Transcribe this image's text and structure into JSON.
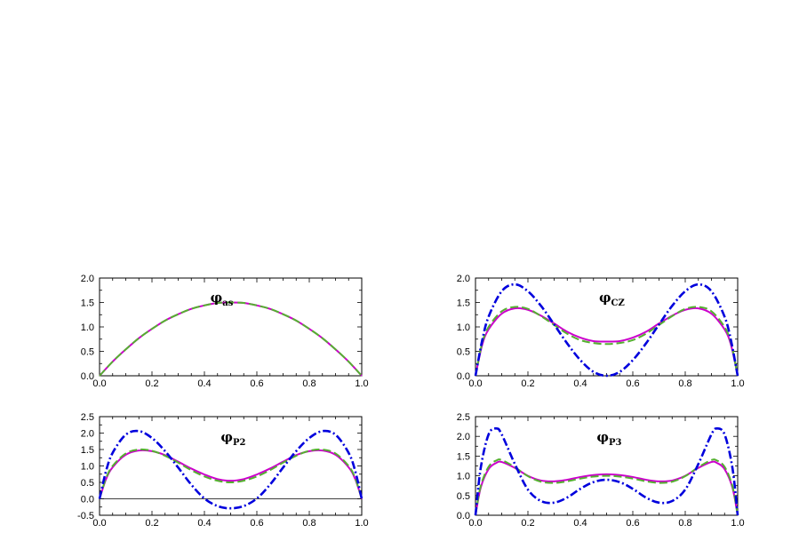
{
  "colors": {
    "magenta": "#cc00cc",
    "green": "#55b030",
    "blue": "#0000dd",
    "axis": "#000000"
  },
  "chart_data": [
    {
      "type": "line",
      "title": "φ",
      "title_sub": "as",
      "xlim": [
        0,
        1
      ],
      "ylim": [
        0,
        2
      ],
      "x_ticks": [
        "0.0",
        "0.2",
        "0.4",
        "0.6",
        "0.8",
        "1.0"
      ],
      "y_ticks": [
        "0.0",
        "0.5",
        "1.0",
        "1.5",
        "2.0"
      ],
      "x_tick_values": [
        0,
        0.2,
        0.4,
        0.6,
        0.8,
        1.0
      ],
      "y_tick_values": [
        0,
        0.5,
        1.0,
        1.5,
        2.0
      ],
      "zero_line": false,
      "series": [
        {
          "style": "solid",
          "color": "magenta",
          "x": [
            0,
            0.05,
            0.1,
            0.15,
            0.2,
            0.25,
            0.3,
            0.35,
            0.4,
            0.45,
            0.5,
            0.55,
            0.6,
            0.65,
            0.7,
            0.75,
            0.8,
            0.85,
            0.9,
            0.95,
            1.0
          ],
          "y": [
            0,
            0.29,
            0.54,
            0.77,
            0.96,
            1.13,
            1.26,
            1.37,
            1.44,
            1.49,
            1.5,
            1.49,
            1.44,
            1.37,
            1.26,
            1.13,
            0.96,
            0.77,
            0.54,
            0.29,
            0
          ]
        },
        {
          "style": "dashed",
          "color": "green",
          "x": [
            0,
            0.05,
            0.1,
            0.15,
            0.2,
            0.25,
            0.3,
            0.35,
            0.4,
            0.45,
            0.5,
            0.55,
            0.6,
            0.65,
            0.7,
            0.75,
            0.8,
            0.85,
            0.9,
            0.95,
            1.0
          ],
          "y": [
            0,
            0.29,
            0.54,
            0.77,
            0.96,
            1.13,
            1.26,
            1.37,
            1.44,
            1.49,
            1.5,
            1.49,
            1.44,
            1.37,
            1.26,
            1.13,
            0.96,
            0.77,
            0.54,
            0.29,
            0
          ]
        }
      ]
    },
    {
      "type": "line",
      "title": "φ",
      "title_sub": "CZ",
      "xlim": [
        0,
        1
      ],
      "ylim": [
        0,
        2
      ],
      "x_ticks": [
        "0.0",
        "0.2",
        "0.4",
        "0.6",
        "0.8",
        "1.0"
      ],
      "y_ticks": [
        "0.0",
        "0.5",
        "1.0",
        "1.5",
        "2.0"
      ],
      "x_tick_values": [
        0,
        0.2,
        0.4,
        0.6,
        0.8,
        1.0
      ],
      "y_tick_values": [
        0,
        0.5,
        1.0,
        1.5,
        2.0
      ],
      "zero_line": false,
      "series": [
        {
          "style": "solid",
          "color": "magenta",
          "x": [
            0,
            0.025,
            0.05,
            0.1,
            0.15,
            0.2,
            0.25,
            0.3,
            0.35,
            0.4,
            0.45,
            0.5,
            0.55,
            0.6,
            0.65,
            0.7,
            0.75,
            0.8,
            0.85,
            0.9,
            0.95,
            0.975,
            1.0
          ],
          "y": [
            0,
            0.62,
            0.95,
            1.27,
            1.38,
            1.35,
            1.23,
            1.07,
            0.9,
            0.78,
            0.71,
            0.7,
            0.71,
            0.78,
            0.9,
            1.07,
            1.23,
            1.35,
            1.38,
            1.27,
            0.95,
            0.62,
            0
          ]
        },
        {
          "style": "dashed",
          "color": "green",
          "x": [
            0,
            0.025,
            0.05,
            0.1,
            0.15,
            0.2,
            0.25,
            0.3,
            0.35,
            0.4,
            0.45,
            0.5,
            0.55,
            0.6,
            0.65,
            0.7,
            0.75,
            0.8,
            0.85,
            0.9,
            0.95,
            0.975,
            1.0
          ],
          "y": [
            0,
            0.66,
            1.0,
            1.32,
            1.41,
            1.37,
            1.22,
            1.04,
            0.86,
            0.73,
            0.67,
            0.65,
            0.67,
            0.73,
            0.86,
            1.04,
            1.22,
            1.37,
            1.41,
            1.32,
            1.0,
            0.66,
            0
          ]
        },
        {
          "style": "dashdot",
          "color": "blue",
          "x": [
            0,
            0.025,
            0.05,
            0.1,
            0.15,
            0.2,
            0.25,
            0.3,
            0.35,
            0.4,
            0.45,
            0.5,
            0.55,
            0.6,
            0.65,
            0.7,
            0.75,
            0.8,
            0.85,
            0.9,
            0.95,
            0.975,
            1.0
          ],
          "y": [
            0,
            0.71,
            1.21,
            1.73,
            1.87,
            1.73,
            1.43,
            1.05,
            0.66,
            0.32,
            0.08,
            0,
            0.08,
            0.32,
            0.66,
            1.05,
            1.43,
            1.73,
            1.87,
            1.73,
            1.21,
            0.71,
            0
          ]
        }
      ]
    },
    {
      "type": "line",
      "title": "φ",
      "title_sub": "P2",
      "xlim": [
        0,
        1
      ],
      "ylim": [
        -0.5,
        2.5
      ],
      "x_ticks": [
        "0.0",
        "0.2",
        "0.4",
        "0.6",
        "0.8",
        "1.0"
      ],
      "y_ticks": [
        "-0.5",
        "0.0",
        "0.5",
        "1.0",
        "1.5",
        "2.0",
        "2.5"
      ],
      "x_tick_values": [
        0,
        0.2,
        0.4,
        0.6,
        0.8,
        1.0
      ],
      "y_tick_values": [
        -0.5,
        0,
        0.5,
        1.0,
        1.5,
        2.0,
        2.5
      ],
      "zero_line": true,
      "series": [
        {
          "style": "solid",
          "color": "magenta",
          "x": [
            0,
            0.025,
            0.05,
            0.1,
            0.15,
            0.2,
            0.25,
            0.3,
            0.35,
            0.4,
            0.45,
            0.5,
            0.55,
            0.6,
            0.65,
            0.7,
            0.75,
            0.8,
            0.85,
            0.9,
            0.95,
            0.975,
            1.0
          ],
          "y": [
            0,
            0.6,
            0.96,
            1.34,
            1.47,
            1.45,
            1.33,
            1.13,
            0.92,
            0.74,
            0.6,
            0.55,
            0.6,
            0.74,
            0.92,
            1.13,
            1.33,
            1.45,
            1.47,
            1.34,
            0.96,
            0.6,
            0
          ]
        },
        {
          "style": "dashed",
          "color": "green",
          "x": [
            0,
            0.025,
            0.05,
            0.1,
            0.15,
            0.2,
            0.25,
            0.3,
            0.35,
            0.4,
            0.45,
            0.5,
            0.55,
            0.6,
            0.65,
            0.7,
            0.75,
            0.8,
            0.85,
            0.9,
            0.95,
            0.975,
            1.0
          ],
          "y": [
            0,
            0.63,
            1.0,
            1.38,
            1.5,
            1.46,
            1.31,
            1.1,
            0.87,
            0.68,
            0.55,
            0.5,
            0.55,
            0.68,
            0.87,
            1.1,
            1.31,
            1.46,
            1.5,
            1.38,
            1.0,
            0.63,
            0
          ]
        },
        {
          "style": "dashdot",
          "color": "blue",
          "x": [
            0,
            0.025,
            0.05,
            0.1,
            0.15,
            0.2,
            0.25,
            0.3,
            0.35,
            0.4,
            0.45,
            0.5,
            0.55,
            0.6,
            0.65,
            0.7,
            0.75,
            0.8,
            0.85,
            0.9,
            0.95,
            0.975,
            1.0
          ],
          "y": [
            0,
            0.85,
            1.4,
            1.95,
            2.06,
            1.85,
            1.45,
            0.95,
            0.43,
            0.01,
            -0.22,
            -0.29,
            -0.22,
            0.01,
            0.43,
            0.95,
            1.45,
            1.85,
            2.06,
            1.95,
            1.4,
            0.85,
            0
          ]
        }
      ]
    },
    {
      "type": "line",
      "title": "φ",
      "title_sub": "P3",
      "xlim": [
        0,
        1
      ],
      "ylim": [
        0,
        2.5
      ],
      "x_ticks": [
        "0.0",
        "0.2",
        "0.4",
        "0.6",
        "0.8",
        "1.0"
      ],
      "y_ticks": [
        "0.0",
        "0.5",
        "1.0",
        "1.5",
        "2.0",
        "2.5"
      ],
      "x_tick_values": [
        0,
        0.2,
        0.4,
        0.6,
        0.8,
        1.0
      ],
      "y_tick_values": [
        0,
        0.5,
        1.0,
        1.5,
        2.0,
        2.5
      ],
      "zero_line": false,
      "series": [
        {
          "style": "solid",
          "color": "magenta",
          "x": [
            0,
            0.02,
            0.05,
            0.08,
            0.1,
            0.15,
            0.2,
            0.25,
            0.3,
            0.35,
            0.4,
            0.45,
            0.5,
            0.55,
            0.6,
            0.65,
            0.7,
            0.75,
            0.8,
            0.85,
            0.9,
            0.92,
            0.95,
            0.98,
            1.0
          ],
          "y": [
            0,
            0.7,
            1.17,
            1.33,
            1.35,
            1.2,
            1.0,
            0.88,
            0.86,
            0.9,
            0.97,
            1.02,
            1.04,
            1.02,
            0.97,
            0.9,
            0.86,
            0.88,
            1.0,
            1.2,
            1.35,
            1.33,
            1.17,
            0.7,
            0
          ]
        },
        {
          "style": "dashed",
          "color": "green",
          "x": [
            0,
            0.02,
            0.05,
            0.08,
            0.1,
            0.15,
            0.2,
            0.25,
            0.3,
            0.35,
            0.4,
            0.45,
            0.5,
            0.55,
            0.6,
            0.65,
            0.7,
            0.75,
            0.8,
            0.85,
            0.9,
            0.92,
            0.95,
            0.98,
            1.0
          ],
          "y": [
            0,
            0.74,
            1.23,
            1.39,
            1.4,
            1.22,
            0.99,
            0.85,
            0.82,
            0.86,
            0.93,
            0.98,
            1.0,
            0.98,
            0.93,
            0.86,
            0.82,
            0.85,
            0.99,
            1.22,
            1.4,
            1.39,
            1.23,
            0.74,
            0
          ]
        },
        {
          "style": "dashdot",
          "color": "blue",
          "x": [
            0,
            0.02,
            0.05,
            0.08,
            0.1,
            0.15,
            0.2,
            0.25,
            0.3,
            0.35,
            0.4,
            0.45,
            0.5,
            0.55,
            0.6,
            0.65,
            0.7,
            0.75,
            0.8,
            0.85,
            0.9,
            0.92,
            0.95,
            0.98,
            1.0
          ],
          "y": [
            0,
            1.2,
            2.05,
            2.2,
            2.05,
            1.3,
            0.65,
            0.36,
            0.32,
            0.45,
            0.67,
            0.84,
            0.9,
            0.84,
            0.67,
            0.45,
            0.32,
            0.36,
            0.65,
            1.3,
            2.05,
            2.2,
            2.05,
            1.2,
            0
          ]
        }
      ]
    }
  ]
}
